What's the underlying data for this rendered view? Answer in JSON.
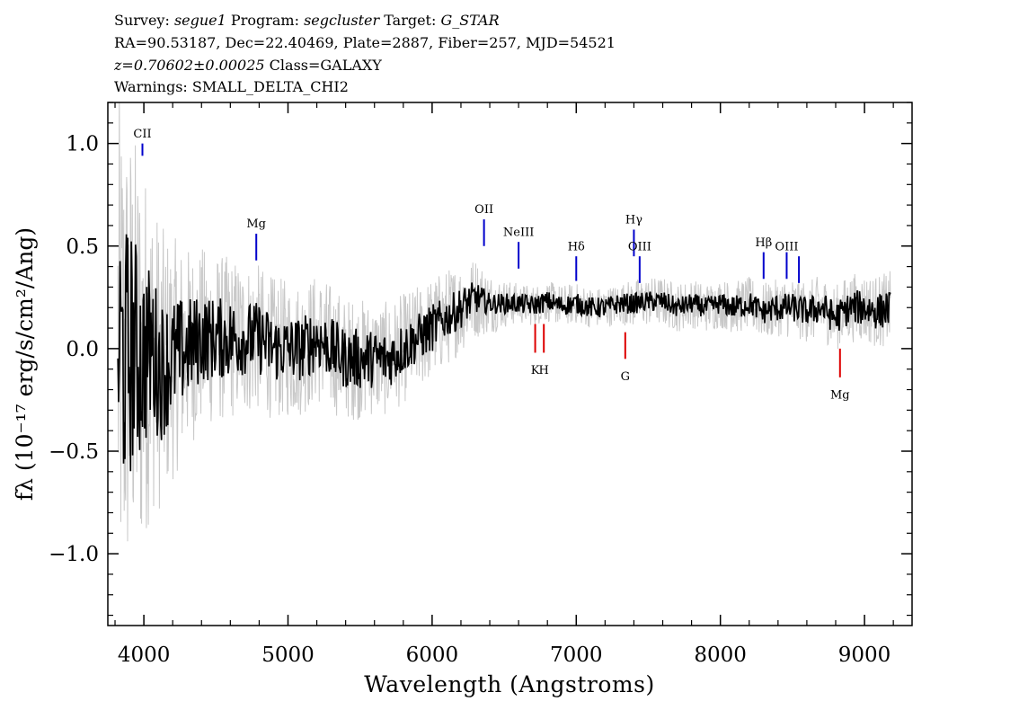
{
  "header": {
    "survey_label": "Survey:",
    "survey": "segue1",
    "program_label": "Program:",
    "program": "segcluster",
    "target_label": "Target:",
    "target": "G_STAR",
    "line2": "RA=90.53187, Dec=22.40469, Plate=2887, Fiber=257, MJD=54521",
    "redshift": "z=0.70602±0.00025",
    "class_text": "Class=GALAXY",
    "warnings": "Warnings: SMALL_DELTA_CHI2"
  },
  "chart_data": {
    "type": "line",
    "xlabel": "Wavelength (Angstroms)",
    "ylabel": "fλ (10⁻¹⁷ erg/s/cm²/Ang)",
    "xlim": [
      3750,
      9330
    ],
    "ylim": [
      -1.35,
      1.2
    ],
    "x_ticks": [
      4000,
      5000,
      6000,
      7000,
      8000,
      9000
    ],
    "x_tick_labels": [
      "4000",
      "5000",
      "6000",
      "7000",
      "8000",
      "9000"
    ],
    "y_ticks": [
      -1.0,
      -0.5,
      0.0,
      0.5,
      1.0
    ],
    "y_tick_labels": [
      "−1.0",
      "−0.5",
      "0.0",
      "0.5",
      "1.0"
    ],
    "grid": false,
    "series": [
      {
        "role": "error",
        "color": "#c8c8c8",
        "x": [
          3820,
          3870,
          3920,
          3980,
          4050,
          4120,
          4200,
          4300,
          4400,
          4500,
          4600,
          4700,
          4800,
          4900,
          5000,
          5100,
          5200,
          5300,
          5400,
          5500,
          5600,
          5700,
          5800,
          5900,
          6000,
          6100,
          6200,
          6300,
          6400,
          6500,
          6600,
          6700,
          6800,
          6900,
          7000,
          7100,
          7200,
          7300,
          7400,
          7500,
          7600,
          7700,
          7800,
          7900,
          8000,
          8100,
          8200,
          8300,
          8400,
          8500,
          8600,
          8700,
          8800,
          8900,
          9000,
          9100,
          9180
        ],
        "y": [
          0.0,
          -0.05,
          0.0,
          -0.05,
          0.0,
          -0.1,
          -0.05,
          0.0,
          0.05,
          0.05,
          0.05,
          0.05,
          0.05,
          0.0,
          0.0,
          0.0,
          0.05,
          0.0,
          -0.05,
          -0.05,
          -0.05,
          -0.05,
          0.0,
          0.05,
          0.1,
          0.15,
          0.2,
          0.25,
          0.22,
          0.22,
          0.22,
          0.21,
          0.23,
          0.21,
          0.22,
          0.2,
          0.2,
          0.22,
          0.22,
          0.23,
          0.23,
          0.2,
          0.22,
          0.2,
          0.22,
          0.2,
          0.22,
          0.18,
          0.2,
          0.2,
          0.18,
          0.2,
          0.15,
          0.2,
          0.2,
          0.18,
          0.2
        ],
        "spread": [
          1.3,
          1.2,
          1.1,
          1.0,
          0.8,
          0.7,
          0.6,
          0.5,
          0.45,
          0.42,
          0.4,
          0.38,
          0.36,
          0.35,
          0.34,
          0.33,
          0.32,
          0.32,
          0.3,
          0.3,
          0.28,
          0.28,
          0.27,
          0.26,
          0.25,
          0.24,
          0.22,
          0.2,
          0.15,
          0.12,
          0.1,
          0.1,
          0.1,
          0.1,
          0.1,
          0.1,
          0.1,
          0.1,
          0.12,
          0.12,
          0.12,
          0.12,
          0.12,
          0.12,
          0.12,
          0.13,
          0.13,
          0.14,
          0.14,
          0.15,
          0.15,
          0.16,
          0.16,
          0.17,
          0.17,
          0.18,
          0.18
        ]
      },
      {
        "role": "flux",
        "color": "#000000",
        "x": [
          3820,
          3870,
          3920,
          3980,
          4050,
          4120,
          4200,
          4300,
          4400,
          4500,
          4600,
          4700,
          4800,
          4900,
          5000,
          5100,
          5200,
          5300,
          5400,
          5500,
          5600,
          5700,
          5800,
          5900,
          6000,
          6100,
          6200,
          6300,
          6400,
          6500,
          6600,
          6700,
          6800,
          6900,
          7000,
          7100,
          7200,
          7300,
          7400,
          7500,
          7600,
          7700,
          7800,
          7900,
          8000,
          8100,
          8200,
          8300,
          8400,
          8500,
          8600,
          8700,
          8800,
          8900,
          9000,
          9100,
          9180
        ],
        "y": [
          0.0,
          -0.05,
          0.0,
          -0.05,
          0.0,
          -0.1,
          -0.05,
          0.0,
          0.05,
          0.05,
          0.05,
          0.05,
          0.05,
          0.0,
          0.0,
          0.0,
          0.05,
          0.0,
          -0.05,
          -0.05,
          -0.05,
          -0.05,
          0.0,
          0.05,
          0.1,
          0.15,
          0.2,
          0.25,
          0.22,
          0.22,
          0.22,
          0.21,
          0.23,
          0.21,
          0.22,
          0.2,
          0.2,
          0.22,
          0.22,
          0.23,
          0.23,
          0.2,
          0.22,
          0.2,
          0.22,
          0.2,
          0.22,
          0.18,
          0.2,
          0.2,
          0.18,
          0.2,
          0.15,
          0.2,
          0.2,
          0.18,
          0.2
        ],
        "spread": [
          0.7,
          0.65,
          0.6,
          0.5,
          0.4,
          0.35,
          0.3,
          0.25,
          0.22,
          0.2,
          0.2,
          0.18,
          0.18,
          0.17,
          0.16,
          0.16,
          0.16,
          0.15,
          0.15,
          0.15,
          0.14,
          0.14,
          0.13,
          0.12,
          0.12,
          0.1,
          0.1,
          0.08,
          0.05,
          0.05,
          0.05,
          0.05,
          0.05,
          0.05,
          0.05,
          0.05,
          0.05,
          0.05,
          0.05,
          0.05,
          0.05,
          0.05,
          0.05,
          0.05,
          0.05,
          0.06,
          0.06,
          0.06,
          0.07,
          0.07,
          0.07,
          0.08,
          0.08,
          0.08,
          0.09,
          0.09,
          0.09
        ]
      }
    ],
    "emission_lines": [
      {
        "label": "CII",
        "x": 3990,
        "y1": 1.0,
        "y2": 0.94,
        "label_y": 1.03,
        "color": "#0000cc"
      },
      {
        "label": "Mg",
        "x": 4780,
        "y1": 0.56,
        "y2": 0.43,
        "label_y": 0.59,
        "color": "#0000cc"
      },
      {
        "label": "OII",
        "x": 6360,
        "y1": 0.63,
        "y2": 0.5,
        "label_y": 0.66,
        "color": "#0000cc"
      },
      {
        "label": "NeIII",
        "x": 6600,
        "y1": 0.52,
        "y2": 0.39,
        "label_y": 0.55,
        "color": "#0000cc"
      },
      {
        "label": "Hδ",
        "x": 7000,
        "y1": 0.45,
        "y2": 0.33,
        "label_y": 0.48,
        "color": "#0000cc"
      },
      {
        "label": "Hγ",
        "x": 7400,
        "y1": 0.58,
        "y2": 0.45,
        "label_y": 0.61,
        "color": "#0000cc"
      },
      {
        "label": "OIII",
        "x": 7440,
        "y1": 0.45,
        "y2": 0.32,
        "label_y": 0.48,
        "color": "#0000cc"
      },
      {
        "label": "Hβ",
        "x": 8300,
        "y1": 0.47,
        "y2": 0.34,
        "label_y": 0.5,
        "color": "#0000cc"
      },
      {
        "label": "OIII",
        "x": 8460,
        "y1": 0.47,
        "y2": 0.34,
        "label_y": 0.48,
        "color": "#0000cc"
      },
      {
        "label": "",
        "x": 8545,
        "y1": 0.45,
        "y2": 0.32,
        "label_y": 0.48,
        "color": "#0000cc"
      }
    ],
    "absorption_lines": [
      {
        "label": "K",
        "x": 6715,
        "y1": 0.12,
        "y2": -0.02,
        "label_y": -0.08,
        "color": "#dd0000"
      },
      {
        "label": "H",
        "x": 6775,
        "y1": 0.12,
        "y2": -0.02,
        "label_y": -0.08,
        "color": "#dd0000"
      },
      {
        "label": "G",
        "x": 7340,
        "y1": 0.08,
        "y2": -0.05,
        "label_y": -0.11,
        "color": "#dd0000"
      },
      {
        "label": "Mg",
        "x": 8830,
        "y1": 0.0,
        "y2": -0.14,
        "label_y": -0.2,
        "color": "#dd0000"
      }
    ]
  }
}
